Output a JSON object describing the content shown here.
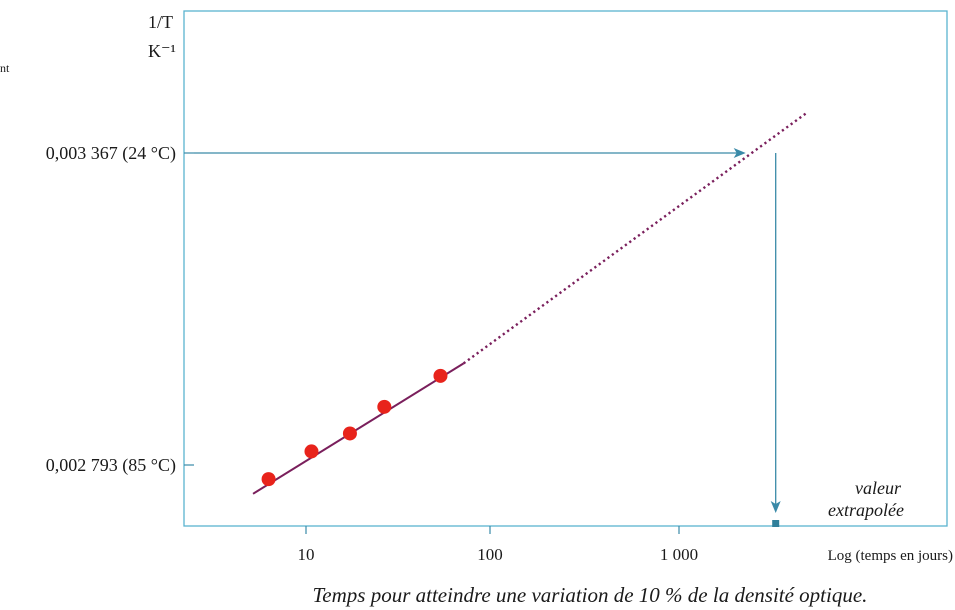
{
  "chart_data": {
    "type": "scatter",
    "x_scale": "log",
    "xlabel": "Log (temps en jours)",
    "ylabel_line1": "1/T",
    "ylabel_line2": "K⁻¹",
    "caption": "Temps pour atteindre une variation de 10 % de la densité optique.",
    "stray_text": "nt",
    "x_ticks": [
      {
        "value": 10,
        "label": "10"
      },
      {
        "value": 100,
        "label": "100"
      },
      {
        "value": 1000,
        "label": "1 000"
      }
    ],
    "y_ticks": [
      {
        "value": 0.003367,
        "label": "0,003 367 (24 °C)"
      },
      {
        "value": 0.002793,
        "label": "0,002 793 (85 °C)"
      }
    ],
    "series": [
      {
        "points": [
          {
            "x": 6.3,
            "y": 0.002767
          },
          {
            "x": 10.7,
            "y": 0.002818
          },
          {
            "x": 17.2,
            "y": 0.002851
          },
          {
            "x": 26.3,
            "y": 0.0029
          },
          {
            "x": 52.6,
            "y": 0.002957
          }
        ],
        "color": "#e8231b"
      }
    ],
    "fit_line": {
      "x_start": 5.2,
      "y_start": 0.00274,
      "x_end": 70,
      "y_end": 0.00298,
      "color": "#7a1f5c"
    },
    "extrapolation": {
      "x_end": 4800,
      "y_end": 0.00344,
      "color": "#7a1f5c",
      "style": "dotted"
    },
    "arrow_color": "#3a8aa8",
    "extrapolated_x": 3300,
    "annotation_line1": "valeur",
    "annotation_line2": "extrapolée",
    "frame_color": "#5bb3d0",
    "grid": false
  }
}
